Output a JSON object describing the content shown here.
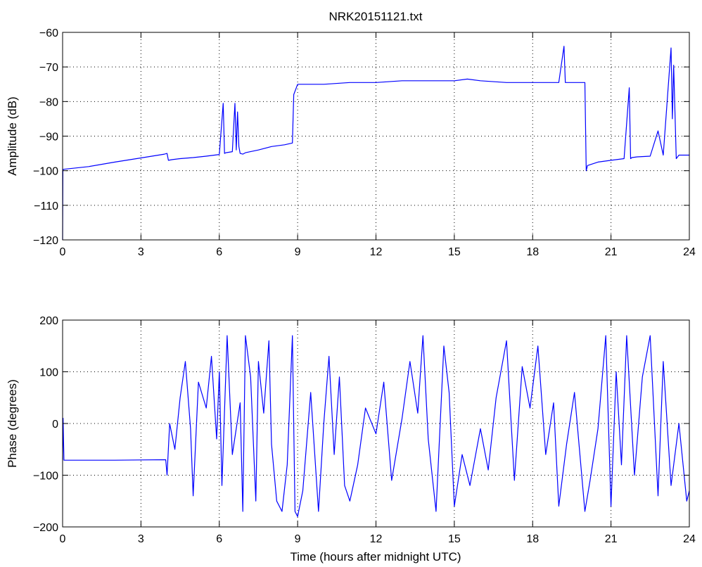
{
  "chart_data": [
    {
      "type": "line",
      "title": "NRK20151121.txt",
      "xlabel": "",
      "ylabel": "Amplitude (dB)",
      "xlim": [
        0,
        24
      ],
      "ylim": [
        -120,
        -60
      ],
      "xticks": [
        "0",
        "3",
        "6",
        "9",
        "12",
        "15",
        "18",
        "21",
        "24"
      ],
      "yticks": [
        "−120",
        "−110",
        "−100",
        "−90",
        "−80",
        "−70",
        "−60"
      ],
      "grid": true,
      "line_color": "#0000ff",
      "series": [
        {
          "x": [
            0,
            0.01,
            0.03,
            1,
            2,
            3,
            3.9,
            4.0,
            4.05,
            4.2,
            4.5,
            5.0,
            5.5,
            6.0,
            6.15,
            6.2,
            6.25,
            6.5,
            6.6,
            6.65,
            6.7,
            6.75,
            6.8,
            6.9,
            7.0,
            7.5,
            8.0,
            8.5,
            8.8,
            8.85,
            9.0,
            10,
            11,
            12,
            13,
            14,
            15,
            15.5,
            16,
            17,
            18,
            19,
            19.2,
            19.25,
            19.3,
            20,
            20.05,
            20.1,
            20.5,
            21,
            21.5,
            21.7,
            21.75,
            21.8,
            22,
            22.5,
            22.8,
            23,
            23.3,
            23.35,
            23.4,
            23.5,
            23.6,
            24
          ],
          "y": [
            -120,
            -100,
            -99.6,
            -98.8,
            -97.5,
            -96.3,
            -95.2,
            -95,
            -97,
            -96.8,
            -96.5,
            -96.2,
            -95.8,
            -95.3,
            -80.5,
            -95,
            -94.8,
            -94.5,
            -80.5,
            -94,
            -83,
            -93,
            -95,
            -95.2,
            -94.8,
            -94,
            -93,
            -92.5,
            -92,
            -78,
            -75,
            -75,
            -74.5,
            -74.5,
            -74,
            -74,
            -74,
            -73.5,
            -74,
            -74.5,
            -74.5,
            -74.5,
            -64,
            -74.5,
            -74.5,
            -74.5,
            -100,
            -98.5,
            -97.5,
            -97,
            -96.5,
            -76,
            -96.5,
            -96.2,
            -96,
            -95.8,
            -88.5,
            -95.5,
            -64.5,
            -85,
            -69.5,
            -96.5,
            -95.5,
            -95.5
          ]
        }
      ]
    },
    {
      "type": "line",
      "title": "",
      "xlabel": "Time (hours after midnight UTC)",
      "ylabel": "Phase (degrees)",
      "xlim": [
        0,
        24
      ],
      "ylim": [
        -200,
        200
      ],
      "xticks": [
        "0",
        "3",
        "6",
        "9",
        "12",
        "15",
        "18",
        "21",
        "24"
      ],
      "yticks": [
        "−200",
        "−100",
        "0",
        "100",
        "200"
      ],
      "grid": true,
      "line_color": "#0000ff",
      "series": [
        {
          "x": [
            0,
            0.02,
            0.05,
            1,
            2,
            3,
            3.95,
            4.0,
            4.1,
            4.3,
            4.5,
            4.7,
            4.9,
            5.0,
            5.2,
            5.5,
            5.7,
            5.9,
            6.0,
            6.1,
            6.3,
            6.5,
            6.8,
            6.9,
            7.0,
            7.2,
            7.4,
            7.5,
            7.7,
            7.9,
            8.0,
            8.2,
            8.4,
            8.6,
            8.8,
            8.9,
            9.0,
            9.2,
            9.5,
            9.8,
            10.0,
            10.2,
            10.4,
            10.6,
            10.8,
            11.0,
            11.3,
            11.6,
            12.0,
            12.3,
            12.6,
            13.0,
            13.3,
            13.6,
            13.8,
            14.0,
            14.3,
            14.6,
            14.8,
            15.0,
            15.3,
            15.6,
            16.0,
            16.3,
            16.6,
            17.0,
            17.3,
            17.6,
            17.9,
            18.2,
            18.5,
            18.8,
            19.0,
            19.3,
            19.6,
            20.0,
            20.2,
            20.5,
            20.8,
            21.0,
            21.2,
            21.4,
            21.6,
            21.9,
            22.2,
            22.5,
            22.8,
            23.0,
            23.3,
            23.6,
            23.9,
            24
          ],
          "y": [
            -70,
            10,
            -71,
            -71,
            -71,
            -70.5,
            -70,
            -100,
            0,
            -50,
            50,
            120,
            -10,
            -140,
            80,
            30,
            130,
            -30,
            100,
            -120,
            170,
            -60,
            40,
            -170,
            170,
            90,
            -150,
            120,
            20,
            160,
            -40,
            -150,
            -170,
            -80,
            170,
            -170,
            -180,
            -130,
            60,
            -170,
            0,
            130,
            -60,
            90,
            -120,
            -150,
            -80,
            30,
            -20,
            80,
            -110,
            10,
            120,
            20,
            170,
            -30,
            -170,
            150,
            60,
            -160,
            -60,
            -120,
            -10,
            -90,
            50,
            160,
            -110,
            110,
            30,
            150,
            -60,
            40,
            -160,
            -40,
            60,
            -170,
            -110,
            -10,
            170,
            -160,
            100,
            -80,
            170,
            -100,
            90,
            170,
            -140,
            120,
            -120,
            0,
            -150,
            -130
          ]
        }
      ]
    }
  ]
}
